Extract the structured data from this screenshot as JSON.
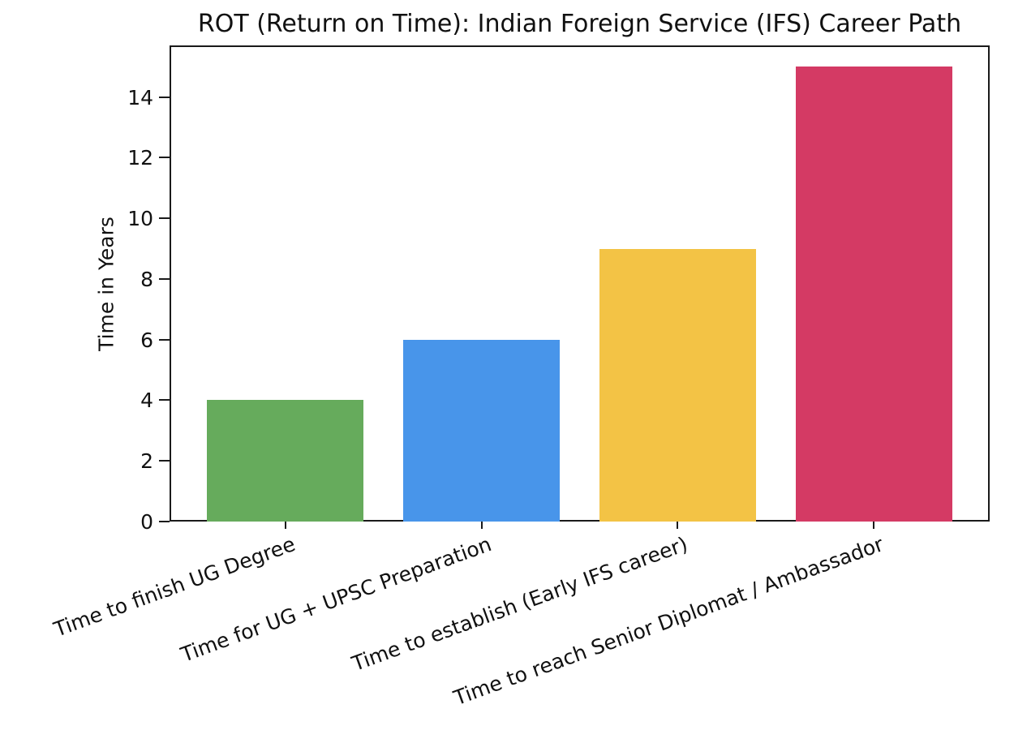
{
  "chart_data": {
    "type": "bar",
    "title": "ROT (Return on Time): Indian Foreign Service (IFS) Career Path",
    "ylabel": "Time in Years",
    "xlabel": "",
    "categories": [
      "Time to finish UG Degree",
      "Time for UG + UPSC Preparation",
      "Time to establish (Early IFS career)",
      "Time to reach Senior Diplomat / Ambassador"
    ],
    "values": [
      4,
      6,
      9,
      15
    ],
    "bar_colors": [
      "#66AB5C",
      "#4895EA",
      "#F3C345",
      "#D43A64"
    ],
    "yticks": [
      0,
      2,
      4,
      6,
      8,
      10,
      12,
      14
    ],
    "ylim": [
      0,
      15.7
    ],
    "grid": false,
    "legend_position": "none",
    "x_tick_rotation_deg": 20,
    "axis_color": "#1a1a1a",
    "background_color": "#ffffff"
  }
}
